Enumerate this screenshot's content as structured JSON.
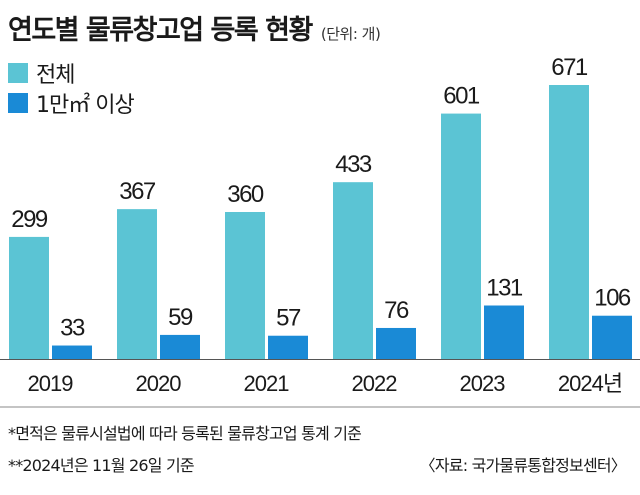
{
  "header": {
    "title": "연도별 물류창고업 등록 현황",
    "unit": "(단위: 개)"
  },
  "colors": {
    "total": "#5bc4d4",
    "large": "#1a8ad6"
  },
  "chart_data": {
    "type": "bar",
    "title": "연도별 물류창고업 등록 현황",
    "unit": "(단위: 개)",
    "categories": [
      "2019",
      "2020",
      "2021",
      "2022",
      "2023",
      "2024년"
    ],
    "series": [
      {
        "name": "전체",
        "values": [
          299,
          367,
          360,
          433,
          601,
          671
        ]
      },
      {
        "name": "1만㎡ 이상",
        "values": [
          33,
          59,
          57,
          76,
          131,
          106
        ]
      }
    ],
    "ylim": [
      0,
      671
    ],
    "xlabel": "",
    "ylabel": ""
  },
  "footnotes": {
    "note1": "*면적은 물류시설법에 따라 등록된 물류창고업 통계 기준",
    "note2": "**2024년은 11월 26일 기준",
    "source": "〈자료: 국가물류통합정보센터〉"
  }
}
